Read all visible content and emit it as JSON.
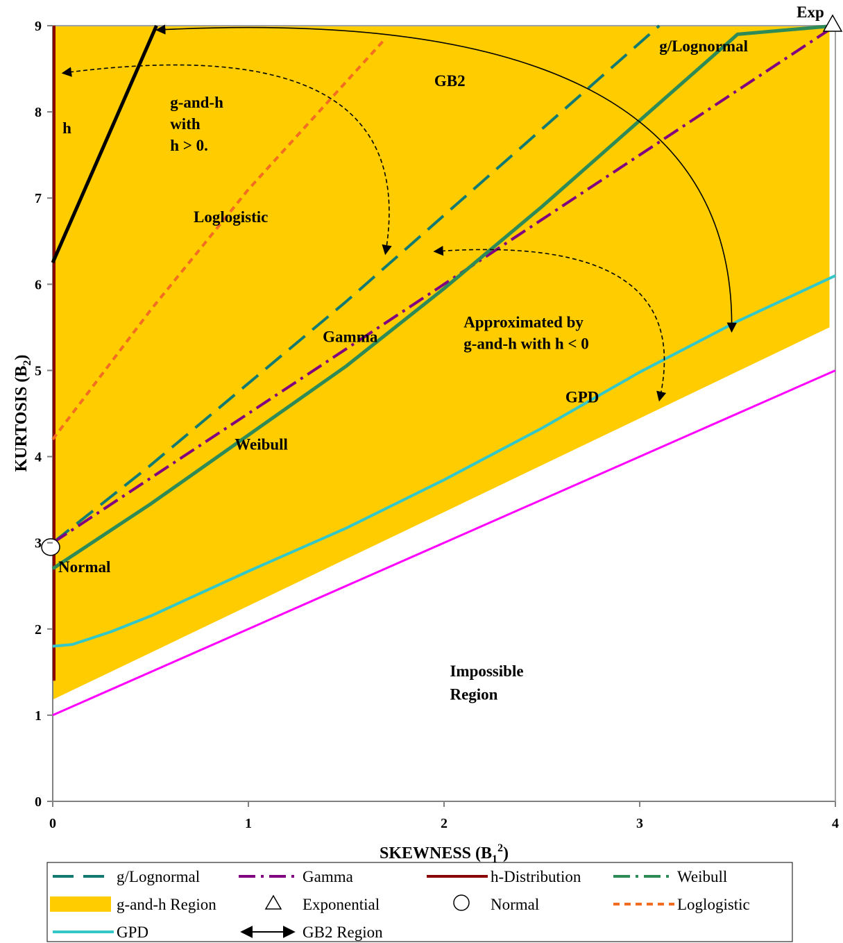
{
  "chart_data": {
    "type": "line",
    "xlabel": "SKEWNESS (B",
    "xlabel_sub": "1",
    "xlabel_sup": "2",
    "xlabel_end": ")",
    "ylabel": "KURTOSIS (B",
    "ylabel_sub": "2",
    "ylabel_end": ")",
    "xlim": [
      0,
      4
    ],
    "ylim": [
      0,
      9
    ],
    "xticks": [
      "0",
      "1",
      "2",
      "3",
      "4"
    ],
    "yticks": [
      "0",
      "1",
      "2",
      "3",
      "4",
      "5",
      "6",
      "7",
      "8",
      "9"
    ],
    "series": [
      {
        "name": "g/Lognormal",
        "color": "#137a72",
        "dash": "long-dash",
        "points": [
          [
            0,
            3.0
          ],
          [
            0.5,
            3.9
          ],
          [
            1.0,
            4.85
          ],
          [
            1.5,
            5.8
          ],
          [
            2.0,
            6.8
          ],
          [
            2.5,
            7.8
          ],
          [
            3.1,
            9.0
          ]
        ]
      },
      {
        "name": "Gamma",
        "color": "#800080",
        "dash": "dash-dot",
        "points": [
          [
            0,
            3.0
          ],
          [
            1,
            4.5
          ],
          [
            2,
            6.0
          ],
          [
            3,
            7.5
          ],
          [
            4,
            9.0
          ]
        ]
      },
      {
        "name": "h-Distribution",
        "color": "#8b0000",
        "dash": "solid",
        "points": [
          [
            0,
            1.4
          ],
          [
            0,
            9.0
          ]
        ]
      },
      {
        "name": "Weibull",
        "color": "#2e8b57",
        "dash": "dash-dot",
        "points": [
          [
            0,
            2.7
          ],
          [
            0.5,
            3.45
          ],
          [
            1.0,
            4.25
          ],
          [
            1.5,
            5.05
          ],
          [
            2.0,
            5.95
          ],
          [
            2.5,
            6.9
          ],
          [
            3.0,
            7.9
          ],
          [
            3.5,
            8.9
          ],
          [
            4.0,
            9.0
          ]
        ]
      },
      {
        "name": "Loglogistic",
        "color": "#f26d21",
        "dash": "short-dash",
        "points": [
          [
            0,
            4.2
          ],
          [
            0.5,
            5.7
          ],
          [
            1.0,
            7.1
          ],
          [
            1.7,
            8.85
          ]
        ]
      },
      {
        "name": "GPD",
        "color": "#33c7c7",
        "dash": "solid",
        "points": [
          [
            0,
            1.8
          ],
          [
            0.1,
            1.82
          ],
          [
            0.3,
            1.97
          ],
          [
            0.5,
            2.15
          ],
          [
            1.0,
            2.67
          ],
          [
            1.5,
            3.17
          ],
          [
            2.0,
            3.73
          ],
          [
            2.5,
            4.33
          ],
          [
            3.0,
            4.98
          ],
          [
            3.5,
            5.57
          ],
          [
            4.0,
            6.1
          ]
        ]
      },
      {
        "name": "",
        "color": "#ff00ff",
        "dash": "solid",
        "points": [
          [
            0,
            1.0
          ],
          [
            4,
            5.0
          ]
        ]
      }
    ],
    "gh_region": {
      "name": "g-and-h Region",
      "color": "#ffcc00",
      "polygon": [
        [
          0,
          1.18
        ],
        [
          3.97,
          5.5
        ],
        [
          3.97,
          9.0
        ],
        [
          0,
          9.0
        ]
      ]
    },
    "gb2_boundary": {
      "color": "#000000",
      "points": [
        [
          0,
          6.25
        ],
        [
          0.53,
          9.0
        ]
      ]
    },
    "markers": [
      {
        "name": "Exponential",
        "shape": "triangle",
        "x": 4,
        "y": 9,
        "label": "Exp"
      },
      {
        "name": "Normal",
        "shape": "circle",
        "x": 0,
        "y": 2.95,
        "label": "Normal"
      }
    ],
    "annotations": [
      {
        "text": "g/Lognormal",
        "x": 3.1,
        "y": 8.7
      },
      {
        "text": "GB2",
        "x": 1.95,
        "y": 8.3
      },
      {
        "text": "h",
        "x": 0.05,
        "y": 7.75
      },
      {
        "text": "g-and-h",
        "x": 0.6,
        "y": 8.05
      },
      {
        "text": "with",
        "x": 0.6,
        "y": 7.8
      },
      {
        "text": "h > 0.",
        "x": 0.6,
        "y": 7.55
      },
      {
        "text": "Loglogistic",
        "x": 0.72,
        "y": 6.72
      },
      {
        "text": "Gamma",
        "x": 1.38,
        "y": 5.33
      },
      {
        "text": "Approximated by",
        "x": 2.1,
        "y": 5.5
      },
      {
        "text": "g-and-h with h < 0",
        "x": 2.1,
        "y": 5.25
      },
      {
        "text": "GPD",
        "x": 2.62,
        "y": 4.63
      },
      {
        "text": "Weibull",
        "x": 0.93,
        "y": 4.08
      },
      {
        "text": "Impossible",
        "x": 2.03,
        "y": 1.45
      },
      {
        "text": "Region",
        "x": 2.03,
        "y": 1.18
      }
    ],
    "arrows": [
      {
        "kind": "solid",
        "from": [
          0.53,
          8.95
        ],
        "ctrl": [
          3.5,
          9.3
        ],
        "to": [
          3.47,
          5.45
        ]
      },
      {
        "kind": "dashed",
        "from": [
          0.05,
          8.45
        ],
        "ctrl": [
          1.9,
          9.0
        ],
        "to": [
          1.7,
          6.35
        ]
      },
      {
        "kind": "dashed",
        "from": [
          1.95,
          6.38
        ],
        "ctrl": [
          3.3,
          6.6
        ],
        "to": [
          3.1,
          4.65
        ]
      }
    ]
  },
  "legend": {
    "items": [
      {
        "label": "g/Lognormal",
        "symbol": "long-dash",
        "color": "#137a72"
      },
      {
        "label": "Gamma",
        "symbol": "dash-dot",
        "color": "#800080"
      },
      {
        "label": "h-Distribution",
        "symbol": "solid",
        "color": "#8b0000"
      },
      {
        "label": "Weibull",
        "symbol": "dash-dot",
        "color": "#2e8b57"
      },
      {
        "label": "g-and-h Region",
        "symbol": "rect",
        "color": "#ffcc00"
      },
      {
        "label": "Exponential",
        "symbol": "triangle",
        "color": "#000000"
      },
      {
        "label": "Normal",
        "symbol": "circle",
        "color": "#000000"
      },
      {
        "label": "Loglogistic",
        "symbol": "short-dash",
        "color": "#f26d21"
      },
      {
        "label": "GPD",
        "symbol": "solid",
        "color": "#33c7c7"
      },
      {
        "label": "GB2 Region",
        "symbol": "double-arrow",
        "color": "#000000"
      }
    ]
  }
}
